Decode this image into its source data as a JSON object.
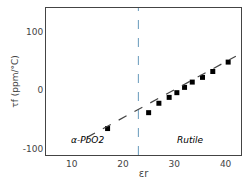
{
  "chart_data": {
    "type": "scatter",
    "x_label": "εr",
    "y_label": "τf (ppm/°C)",
    "xlim": [
      5,
      43
    ],
    "ylim": [
      -110,
      140
    ],
    "xticks": [
      10,
      20,
      30,
      40
    ],
    "yticks": [
      -100,
      0,
      100
    ],
    "grid": false,
    "series": [
      {
        "type": "scatter",
        "marker": "square",
        "color": "black",
        "x": [
          17.0,
          25.0,
          27.0,
          29.0,
          30.5,
          32.0,
          33.5,
          35.5,
          37.5,
          40.5
        ],
        "values": [
          -65,
          -38,
          -22,
          -12,
          -4,
          5,
          14,
          22,
          32,
          48
        ]
      },
      {
        "type": "line",
        "line_style": "dashed",
        "color": "#444444",
        "x": [
          13.0,
          42.0
        ],
        "values": [
          -80,
          58
        ]
      }
    ],
    "vlines": [
      {
        "x": 23,
        "color": "#6699bb",
        "line_style": "dashed"
      }
    ],
    "annotations": [
      {
        "text": "α-PbO2",
        "x": 13,
        "y": -85
      },
      {
        "text": "Rutile",
        "x": 33,
        "y": -85
      }
    ]
  }
}
